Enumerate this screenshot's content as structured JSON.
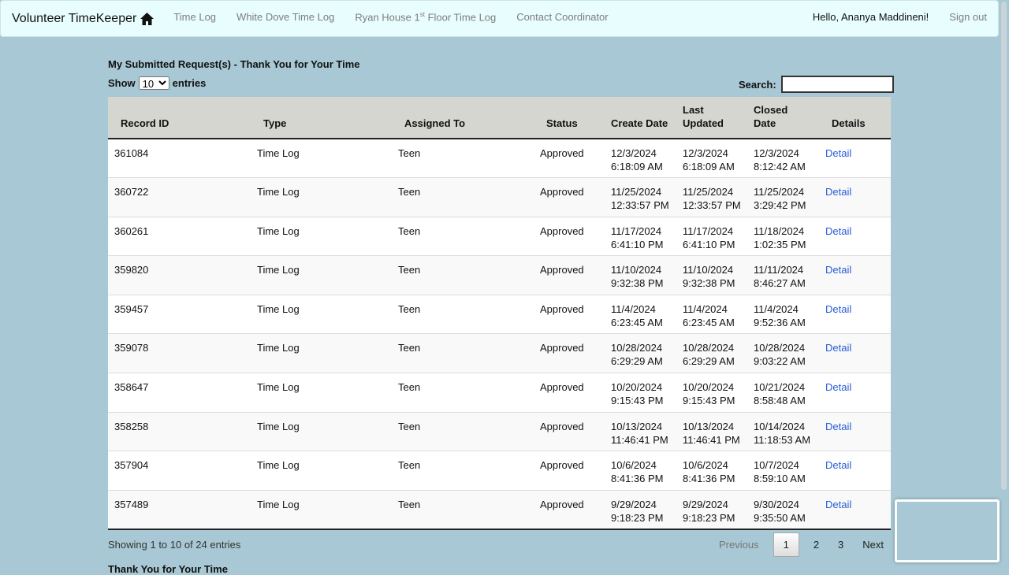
{
  "nav": {
    "brand": "Volunteer TimeKeeper",
    "links": [
      "Time Log",
      "White Dove Time Log",
      "Ryan House 1",
      "st",
      " Floor Time Log",
      "Contact Coordinator"
    ],
    "greeting": "Hello, Ananya Maddineni!",
    "signout": "Sign out"
  },
  "page": {
    "title": "My Submitted Request(s) - Thank You for Your Time",
    "show": "Show",
    "entries_value": "10",
    "entries": "entries",
    "search_label": "Search:",
    "search_value": "",
    "footer_title": "Thank You for Your Time"
  },
  "table": {
    "headers": [
      "Record ID",
      "Type",
      "Assigned To",
      "Status",
      "Create Date",
      "Last Updated",
      "Closed Date",
      "Details"
    ],
    "rows": [
      [
        "361084",
        "Time Log",
        "Teen",
        "Approved",
        "12/3/2024 6:18:09 AM",
        "12/3/2024 6:18:09 AM",
        "12/3/2024 8:12:42 AM",
        "Detail"
      ],
      [
        "360722",
        "Time Log",
        "Teen",
        "Approved",
        "11/25/2024 12:33:57 PM",
        "11/25/2024 12:33:57 PM",
        "11/25/2024 3:29:42 PM",
        "Detail"
      ],
      [
        "360261",
        "Time Log",
        "Teen",
        "Approved",
        "11/17/2024 6:41:10 PM",
        "11/17/2024 6:41:10 PM",
        "11/18/2024 1:02:35 PM",
        "Detail"
      ],
      [
        "359820",
        "Time Log",
        "Teen",
        "Approved",
        "11/10/2024 9:32:38 PM",
        "11/10/2024 9:32:38 PM",
        "11/11/2024 8:46:27 AM",
        "Detail"
      ],
      [
        "359457",
        "Time Log",
        "Teen",
        "Approved",
        "11/4/2024 6:23:45 AM",
        "11/4/2024 6:23:45 AM",
        "11/4/2024 9:52:36 AM",
        "Detail"
      ],
      [
        "359078",
        "Time Log",
        "Teen",
        "Approved",
        "10/28/2024 6:29:29 AM",
        "10/28/2024 6:29:29 AM",
        "10/28/2024 9:03:22 AM",
        "Detail"
      ],
      [
        "358647",
        "Time Log",
        "Teen",
        "Approved",
        "10/20/2024 9:15:43 PM",
        "10/20/2024 9:15:43 PM",
        "10/21/2024 8:58:48 AM",
        "Detail"
      ],
      [
        "358258",
        "Time Log",
        "Teen",
        "Approved",
        "10/13/2024 11:46:41 PM",
        "10/13/2024 11:46:41 PM",
        "10/14/2024 11:18:53 AM",
        "Detail"
      ],
      [
        "357904",
        "Time Log",
        "Teen",
        "Approved",
        "10/6/2024 8:41:36 PM",
        "10/6/2024 8:41:36 PM",
        "10/7/2024 8:59:10 AM",
        "Detail"
      ],
      [
        "357489",
        "Time Log",
        "Teen",
        "Approved",
        "9/29/2024 9:18:23 PM",
        "9/29/2024 9:18:23 PM",
        "9/30/2024 9:35:50 AM",
        "Detail"
      ]
    ]
  },
  "pagination": {
    "info": "Showing 1 to 10 of 24 entries",
    "previous": "Previous",
    "pages": [
      "1",
      "2",
      "3"
    ],
    "current": "1",
    "next": "Next"
  },
  "icons": {
    "brand": "home-icon"
  }
}
